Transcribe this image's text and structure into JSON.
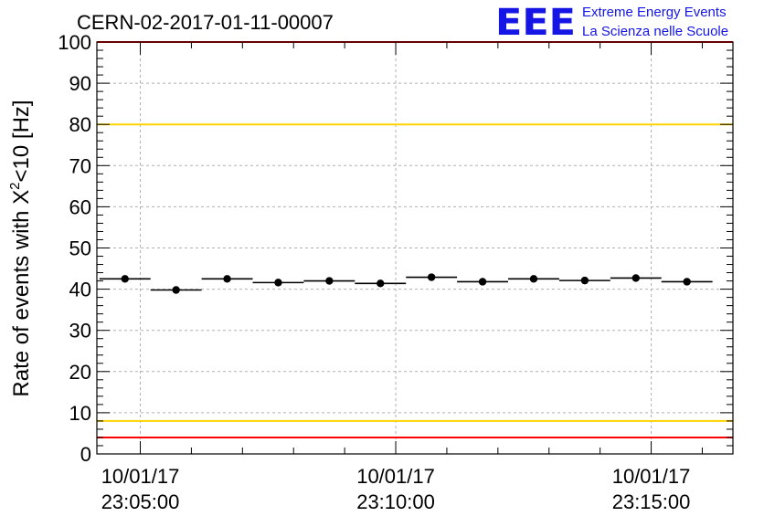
{
  "header": {
    "run_title": "CERN-02-2017-01-11-00007",
    "logo_text": "EEE",
    "logo_line1": "Extreme Energy Events",
    "logo_line2": "La Scienza nelle Scuole"
  },
  "colors": {
    "logo": "#1515e6",
    "upper_limit_line": "#ffd400",
    "lower_limit_line": "#ffd400",
    "min_line": "#ff0000",
    "frame_top_line": "#ff0000",
    "markers": "#000000",
    "grid": "#b0b0b0"
  },
  "chart_data": {
    "type": "scatter",
    "title": "CERN-02-2017-01-11-00007",
    "ylabel": "Rate of events with X²<10 [Hz]",
    "ylabel_parts": {
      "main": "Rate of events with X",
      "sup": "2",
      "tail": "<10 [Hz]"
    },
    "xlabel": "",
    "ylim": [
      0,
      100
    ],
    "yticks": [
      0,
      10,
      20,
      30,
      40,
      50,
      60,
      70,
      80,
      90,
      100
    ],
    "xlim_minutes": [
      -0.85,
      11.6
    ],
    "xaxis_origin": "10/01/17 23:05:00",
    "xticks": [
      {
        "minutes": 0,
        "date": "10/01/17",
        "time": "23:05:00"
      },
      {
        "minutes": 5,
        "date": "10/01/17",
        "time": "23:10:00"
      },
      {
        "minutes": 10,
        "date": "10/01/17",
        "time": "23:15:00"
      }
    ],
    "grid": true,
    "bin_width_minutes": 1,
    "x": [
      -0.3,
      0.7,
      1.7,
      2.7,
      3.7,
      4.7,
      5.7,
      6.7,
      7.7,
      8.7,
      9.7,
      10.7
    ],
    "values": [
      42.5,
      39.8,
      42.5,
      41.6,
      42.0,
      41.4,
      42.9,
      41.8,
      42.5,
      42.1,
      42.7,
      41.8
    ],
    "reference_lines": [
      {
        "y": 80,
        "color": "#ffd400"
      },
      {
        "y": 8,
        "color": "#ffd400"
      },
      {
        "y": 4,
        "color": "#ff0000"
      },
      {
        "y": 100,
        "color": "#ff0000"
      }
    ]
  }
}
